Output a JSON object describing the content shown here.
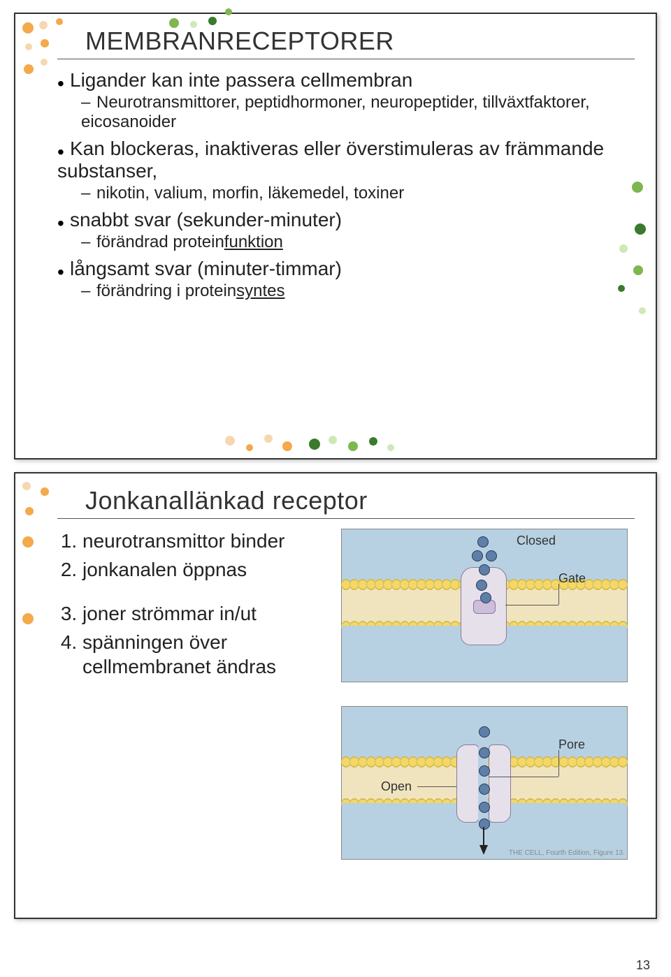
{
  "page_number": "13",
  "slide1": {
    "title": "MEMBRANRECEPTORER",
    "bullets": [
      {
        "text": "Ligander kan inte passera cellmembran",
        "sub": [
          "Neurotransmittorer, peptidhormoner, neuropeptider, tillväxtfaktorer, eicosanoider"
        ]
      },
      {
        "text": "Kan blockeras, inaktiveras eller överstimuleras av främmande substanser,",
        "sub": [
          "nikotin, valium, morfin, läkemedel, toxiner"
        ]
      },
      {
        "text": "snabbt svar (sekunder-minuter)",
        "sub_html": [
          "förändrad protein<span class='udl'>funktion</span>"
        ]
      },
      {
        "text": "långsamt svar (minuter-timmar)",
        "sub_html": [
          "förändring i protein<span class='udl'>syntes</span>"
        ]
      }
    ],
    "dot_colors": {
      "orange": "#f4a94a",
      "peach": "#f7d7b0",
      "green": "#7eb74f",
      "dkgreen": "#3a7a2c",
      "ltgreen": "#cfe8b8"
    }
  },
  "slide2": {
    "title": "Jonkanallänkad receptor",
    "items": [
      "neurotransmittor binder",
      "jonkanalen öppnas",
      "joner strömmar in/ut",
      "spänningen över cellmembranet ändras"
    ],
    "labels": {
      "closed": "Closed",
      "gate": "Gate",
      "open": "Open",
      "pore": "Pore"
    },
    "credit": "THE CELL, Fourth Edition, Figure 13.",
    "colors": {
      "water": "#b7d1e3",
      "lipid_fill": "#f0e4bf",
      "lipid_head": "#f3d868",
      "channel": "#e6e0eb",
      "channel_border": "#8a7a9a",
      "ion": "#5d7fa8",
      "ion_border": "#2a3a55"
    },
    "dot_colors": {
      "orange": "#f4a94a",
      "peach": "#f7d7b0"
    }
  }
}
